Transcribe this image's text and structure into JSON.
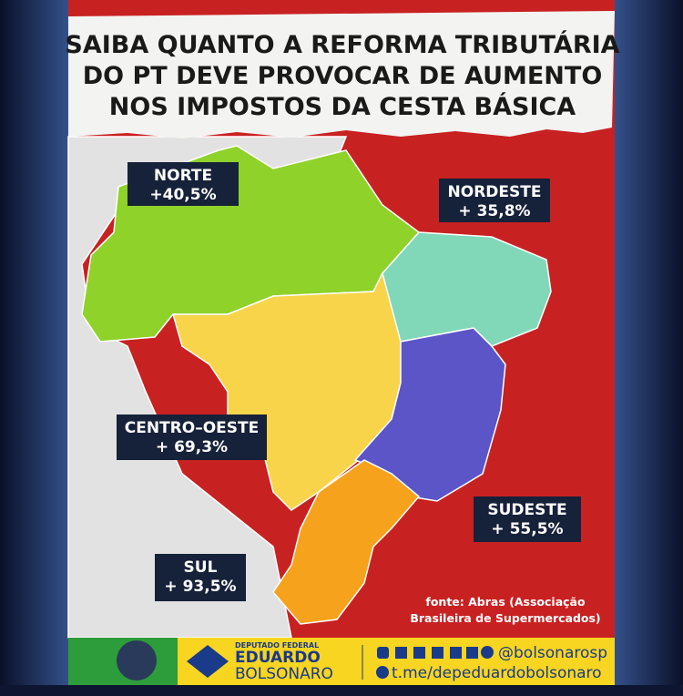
{
  "header": {
    "title_lines": [
      "SAIBA QUANTO A REFORMA TRIBUTÁRIA",
      "DO PT DEVE PROVOCAR DE AUMENTO",
      "NOS IMPOSTOS DA CESTA BÁSICA"
    ]
  },
  "regions": [
    {
      "name": "NORTE",
      "value": "+40,5%"
    },
    {
      "name": "NORDESTE",
      "value": "+ 35,8%"
    },
    {
      "name": "CENTRO–OESTE",
      "value": "+ 69,3%"
    },
    {
      "name": "SUDESTE",
      "value": "+ 55,5%"
    },
    {
      "name": "SUL",
      "value": "+ 93,5%"
    }
  ],
  "source": [
    "fonte: Abras (Associação",
    "Brasileira de Supermercados)"
  ],
  "footer": {
    "role": "DEPUTADO FEDERAL",
    "first_name": "EDUARDO",
    "last_name": "BOLSONARO",
    "social_handle": "@bolsonarosp",
    "telegram": "t.me/depeduardobolsonaro"
  }
}
